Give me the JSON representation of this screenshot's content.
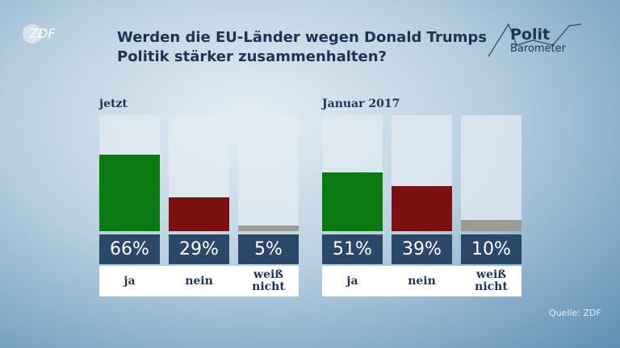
{
  "title": [
    "Werden die EU-Länder wegen Donald Trumps",
    "Politik stärker zusammenhalten?"
  ],
  "logo": {
    "channel": "ZDF",
    "top": "Polit",
    "bottom": "Barometer"
  },
  "source": "Quelle: ZDF",
  "chart_data": [
    {
      "type": "bar",
      "subtitle": "jetzt",
      "categories": [
        "ja",
        "nein",
        "weiß nicht"
      ],
      "values": [
        66,
        29,
        5
      ],
      "value_labels": [
        "66%",
        "29%",
        "5%"
      ],
      "colors": [
        "#0b7a12",
        "#7a1010",
        "#9b9b98"
      ],
      "ylim": [
        0,
        100
      ]
    },
    {
      "type": "bar",
      "subtitle": "Januar 2017",
      "categories": [
        "ja",
        "nein",
        "weiß nicht"
      ],
      "values": [
        51,
        39,
        10
      ],
      "value_labels": [
        "51%",
        "39%",
        "10%"
      ],
      "colors": [
        "#0b7a12",
        "#7a1010",
        "#9b9b98"
      ],
      "ylim": [
        0,
        100
      ]
    }
  ]
}
